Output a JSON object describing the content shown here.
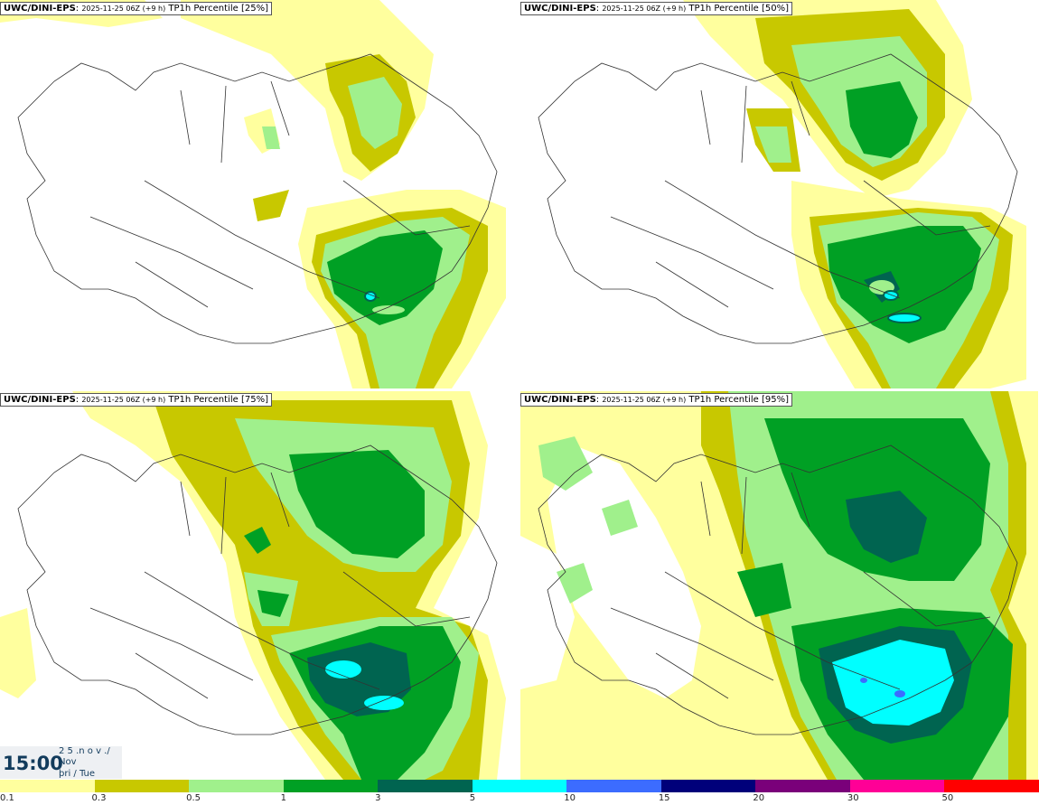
{
  "panels": [
    {
      "source": "UWC/DINI-EPS",
      "run": "2025-11-25 06Z (+9 h)",
      "product": "TP1h Percentile [25%]"
    },
    {
      "source": "UWC/DINI-EPS",
      "run": "2025-11-25 06Z (+9 h)",
      "product": "TP1h Percentile [50%]"
    },
    {
      "source": "UWC/DINI-EPS",
      "run": "2025-11-25 06Z (+9 h)",
      "product": "TP1h Percentile [75%]"
    },
    {
      "source": "UWC/DINI-EPS",
      "run": "2025-11-25 06Z (+9 h)",
      "product": "TP1h Percentile [95%]"
    }
  ],
  "valid_time": {
    "time": "15:00",
    "line1": "2 5 .n o v ./",
    "line2": "Nov",
    "line3": "þri / Tue"
  },
  "legend": {
    "ticks": [
      "0.1",
      "0.3",
      "0.5",
      "1",
      "3",
      "5",
      "10",
      "15",
      "20",
      "30",
      "50"
    ],
    "colors": [
      "#ffff9e",
      "#c8c800",
      "#a0f08c",
      "#00a024",
      "#006450",
      "#00ffff",
      "#3c6cff",
      "#00007a",
      "#7a007a",
      "#ff0096",
      "#ff0000"
    ]
  }
}
